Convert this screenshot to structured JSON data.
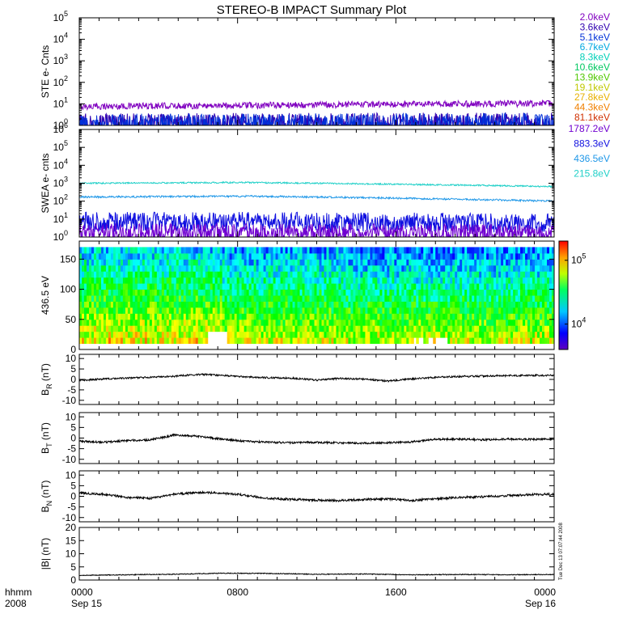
{
  "colors": {
    "background": "#ffffff",
    "axis": "#000000",
    "violet": "#7000d0",
    "blue": "#1010f0",
    "cyan": "#20c8f0",
    "teal": "#20d8c0"
  },
  "chart_data": {
    "title": "STEREO-B IMPACT Summary Plot",
    "x_axis": {
      "ticks": [
        "0000",
        "0800",
        "1600",
        "0000"
      ],
      "date_ticks": [
        "Sep 15",
        "Sep 16"
      ],
      "unit_label": "hhmm",
      "year_label": "2008"
    },
    "timestamp": "Tue Dec 13 07:07:44 2008",
    "panels": [
      {
        "id": "ste",
        "type": "line",
        "ylabel": "STE e- Cnts",
        "yscale": "log",
        "ylim": [
          1,
          100000
        ],
        "yticks": [
          {
            "base": "10",
            "exp": "0"
          },
          {
            "base": "10",
            "exp": "1"
          },
          {
            "base": "10",
            "exp": "2"
          },
          {
            "base": "10",
            "exp": "3"
          },
          {
            "base": "10",
            "exp": "4"
          },
          {
            "base": "10",
            "exp": "5"
          }
        ],
        "legend": [
          {
            "label": "2.0keV",
            "color": "#8000c0"
          },
          {
            "label": "3.6keV",
            "color": "#3000b0"
          },
          {
            "label": "5.1keV",
            "color": "#0030d8"
          },
          {
            "label": "6.7keV",
            "color": "#00a8e0"
          },
          {
            "label": "8.3keV",
            "color": "#00d0b8"
          },
          {
            "label": "10.6keV",
            "color": "#00c860"
          },
          {
            "label": "13.9keV",
            "color": "#50c800"
          },
          {
            "label": "19.1keV",
            "color": "#c0c800"
          },
          {
            "label": "27.8keV",
            "color": "#e8b000"
          },
          {
            "label": "44.3keV",
            "color": "#f08000"
          },
          {
            "label": "81.1keV",
            "color": "#d03000"
          }
        ],
        "series": [
          {
            "label": "2.0keV",
            "level_start": 7.5,
            "level_end": 10.5,
            "noise": 0.15
          },
          {
            "label": "3.6keV",
            "level_start": 1.3,
            "level_end": 1.4,
            "noise": 0.45
          },
          {
            "label": "5.1keV",
            "level_start": 1.1,
            "level_end": 1.2,
            "noise": 0.5
          }
        ]
      },
      {
        "id": "swea",
        "type": "line",
        "ylabel": "SWEA e- cnts",
        "yscale": "log",
        "ylim": [
          1,
          1000000
        ],
        "yticks": [
          {
            "base": "10",
            "exp": "0"
          },
          {
            "base": "10",
            "exp": "1"
          },
          {
            "base": "10",
            "exp": "2"
          },
          {
            "base": "10",
            "exp": "3"
          },
          {
            "base": "10",
            "exp": "4"
          },
          {
            "base": "10",
            "exp": "5"
          },
          {
            "base": "10",
            "exp": "6"
          }
        ],
        "legend": [
          {
            "label": "1787.2eV",
            "color": "#7000d0"
          },
          {
            "label": "883.3eV",
            "color": "#1010e0"
          },
          {
            "label": "436.5eV",
            "color": "#2098e8"
          },
          {
            "label": "215.8eV",
            "color": "#20d0c8"
          }
        ],
        "series": [
          {
            "label": "215.8eV",
            "level_start": 1000,
            "level_mid": 1100,
            "level_end": 650,
            "noise": 0.04
          },
          {
            "label": "436.5eV",
            "level_start": 170,
            "level_mid": 190,
            "level_end": 100,
            "noise": 0.05
          },
          {
            "label": "883.3eV",
            "level_start": 7,
            "level_mid": 7,
            "level_end": 6,
            "noise": 0.55
          },
          {
            "label": "1787.2eV",
            "level_start": 1.8,
            "level_mid": 1.8,
            "level_end": 1.6,
            "noise": 0.5
          }
        ]
      },
      {
        "id": "pad",
        "type": "heatmap",
        "ylabel": "436.5 eV",
        "ylim": [
          0,
          180
        ],
        "yticks": [
          "0",
          "50",
          "100",
          "150"
        ],
        "coverage": [
          10,
          170
        ],
        "colorbar": {
          "scale": "log",
          "range": [
            4000,
            200000
          ],
          "ticks": [
            {
              "base": "10",
              "exp": "4",
              "value": 10000
            },
            {
              "base": "10",
              "exp": "5",
              "value": 100000
            }
          ]
        }
      },
      {
        "id": "br",
        "type": "line",
        "ylabel_main": "B",
        "ylabel_sub": "R",
        "ylabel_unit": " (nT)",
        "ylim": [
          -12,
          12
        ],
        "yticks": [
          "-10",
          "-5",
          "0",
          "5",
          "10"
        ],
        "trend": [
          [
            0,
            -0.5
          ],
          [
            0.05,
            0.2
          ],
          [
            0.12,
            0.8
          ],
          [
            0.2,
            1.5
          ],
          [
            0.25,
            2.4
          ],
          [
            0.3,
            2.0
          ],
          [
            0.35,
            1.2
          ],
          [
            0.4,
            0.8
          ],
          [
            0.45,
            0.6
          ],
          [
            0.5,
            -0.3
          ],
          [
            0.55,
            0.5
          ],
          [
            0.6,
            0.1
          ],
          [
            0.65,
            -0.8
          ],
          [
            0.7,
            0.2
          ],
          [
            0.75,
            1.0
          ],
          [
            0.8,
            1.4
          ],
          [
            0.85,
            1.6
          ],
          [
            0.9,
            1.8
          ],
          [
            0.95,
            1.9
          ],
          [
            1.0,
            2.0
          ]
        ],
        "noise": 0.4
      },
      {
        "id": "bt",
        "type": "line",
        "ylabel_main": "B",
        "ylabel_sub": "T",
        "ylabel_unit": " (nT)",
        "ylim": [
          -12,
          12
        ],
        "yticks": [
          "-10",
          "-5",
          "0",
          "5",
          "10"
        ],
        "trend": [
          [
            0,
            -1.5
          ],
          [
            0.05,
            -2.0
          ],
          [
            0.1,
            -1.2
          ],
          [
            0.15,
            -0.8
          ],
          [
            0.18,
            0.5
          ],
          [
            0.2,
            1.5
          ],
          [
            0.25,
            0.8
          ],
          [
            0.3,
            -0.5
          ],
          [
            0.35,
            -1.5
          ],
          [
            0.4,
            -2.0
          ],
          [
            0.45,
            -2.2
          ],
          [
            0.5,
            -2.0
          ],
          [
            0.55,
            -2.3
          ],
          [
            0.6,
            -2.4
          ],
          [
            0.65,
            -2.2
          ],
          [
            0.7,
            -1.8
          ],
          [
            0.75,
            -0.6
          ],
          [
            0.8,
            -0.5
          ],
          [
            0.85,
            -0.8
          ],
          [
            0.9,
            -0.5
          ],
          [
            0.95,
            -0.6
          ],
          [
            1.0,
            -0.5
          ]
        ],
        "noise": 0.45
      },
      {
        "id": "bn",
        "type": "line",
        "ylabel_main": "B",
        "ylabel_sub": "N",
        "ylabel_unit": " (nT)",
        "ylim": [
          -12,
          12
        ],
        "yticks": [
          "-10",
          "-5",
          "0",
          "5",
          "10"
        ],
        "trend": [
          [
            0,
            1.5
          ],
          [
            0.05,
            1.0
          ],
          [
            0.1,
            -0.5
          ],
          [
            0.15,
            -1.0
          ],
          [
            0.2,
            1.0
          ],
          [
            0.25,
            1.8
          ],
          [
            0.3,
            1.5
          ],
          [
            0.35,
            0.5
          ],
          [
            0.4,
            -1.0
          ],
          [
            0.45,
            -1.5
          ],
          [
            0.5,
            -1.8
          ],
          [
            0.55,
            -2.0
          ],
          [
            0.6,
            -1.5
          ],
          [
            0.65,
            -1.2
          ],
          [
            0.7,
            -2.0
          ],
          [
            0.75,
            -1.2
          ],
          [
            0.8,
            -0.5
          ],
          [
            0.85,
            -0.2
          ],
          [
            0.9,
            0.3
          ],
          [
            0.95,
            0.8
          ],
          [
            1.0,
            1.0
          ]
        ],
        "noise": 0.5
      },
      {
        "id": "bmag",
        "type": "line",
        "ylabel_main": "|B| (nT)",
        "ylim": [
          0,
          20
        ],
        "yticks": [
          "0",
          "5",
          "10",
          "15",
          "20"
        ],
        "trend": [
          [
            0,
            1.8
          ],
          [
            0.1,
            2.0
          ],
          [
            0.2,
            2.2
          ],
          [
            0.3,
            2.6
          ],
          [
            0.4,
            2.5
          ],
          [
            0.5,
            2.2
          ],
          [
            0.6,
            2.3
          ],
          [
            0.7,
            2.0
          ],
          [
            0.8,
            2.1
          ],
          [
            0.9,
            2.0
          ],
          [
            1.0,
            2.1
          ]
        ],
        "noise": 0.15
      }
    ]
  }
}
